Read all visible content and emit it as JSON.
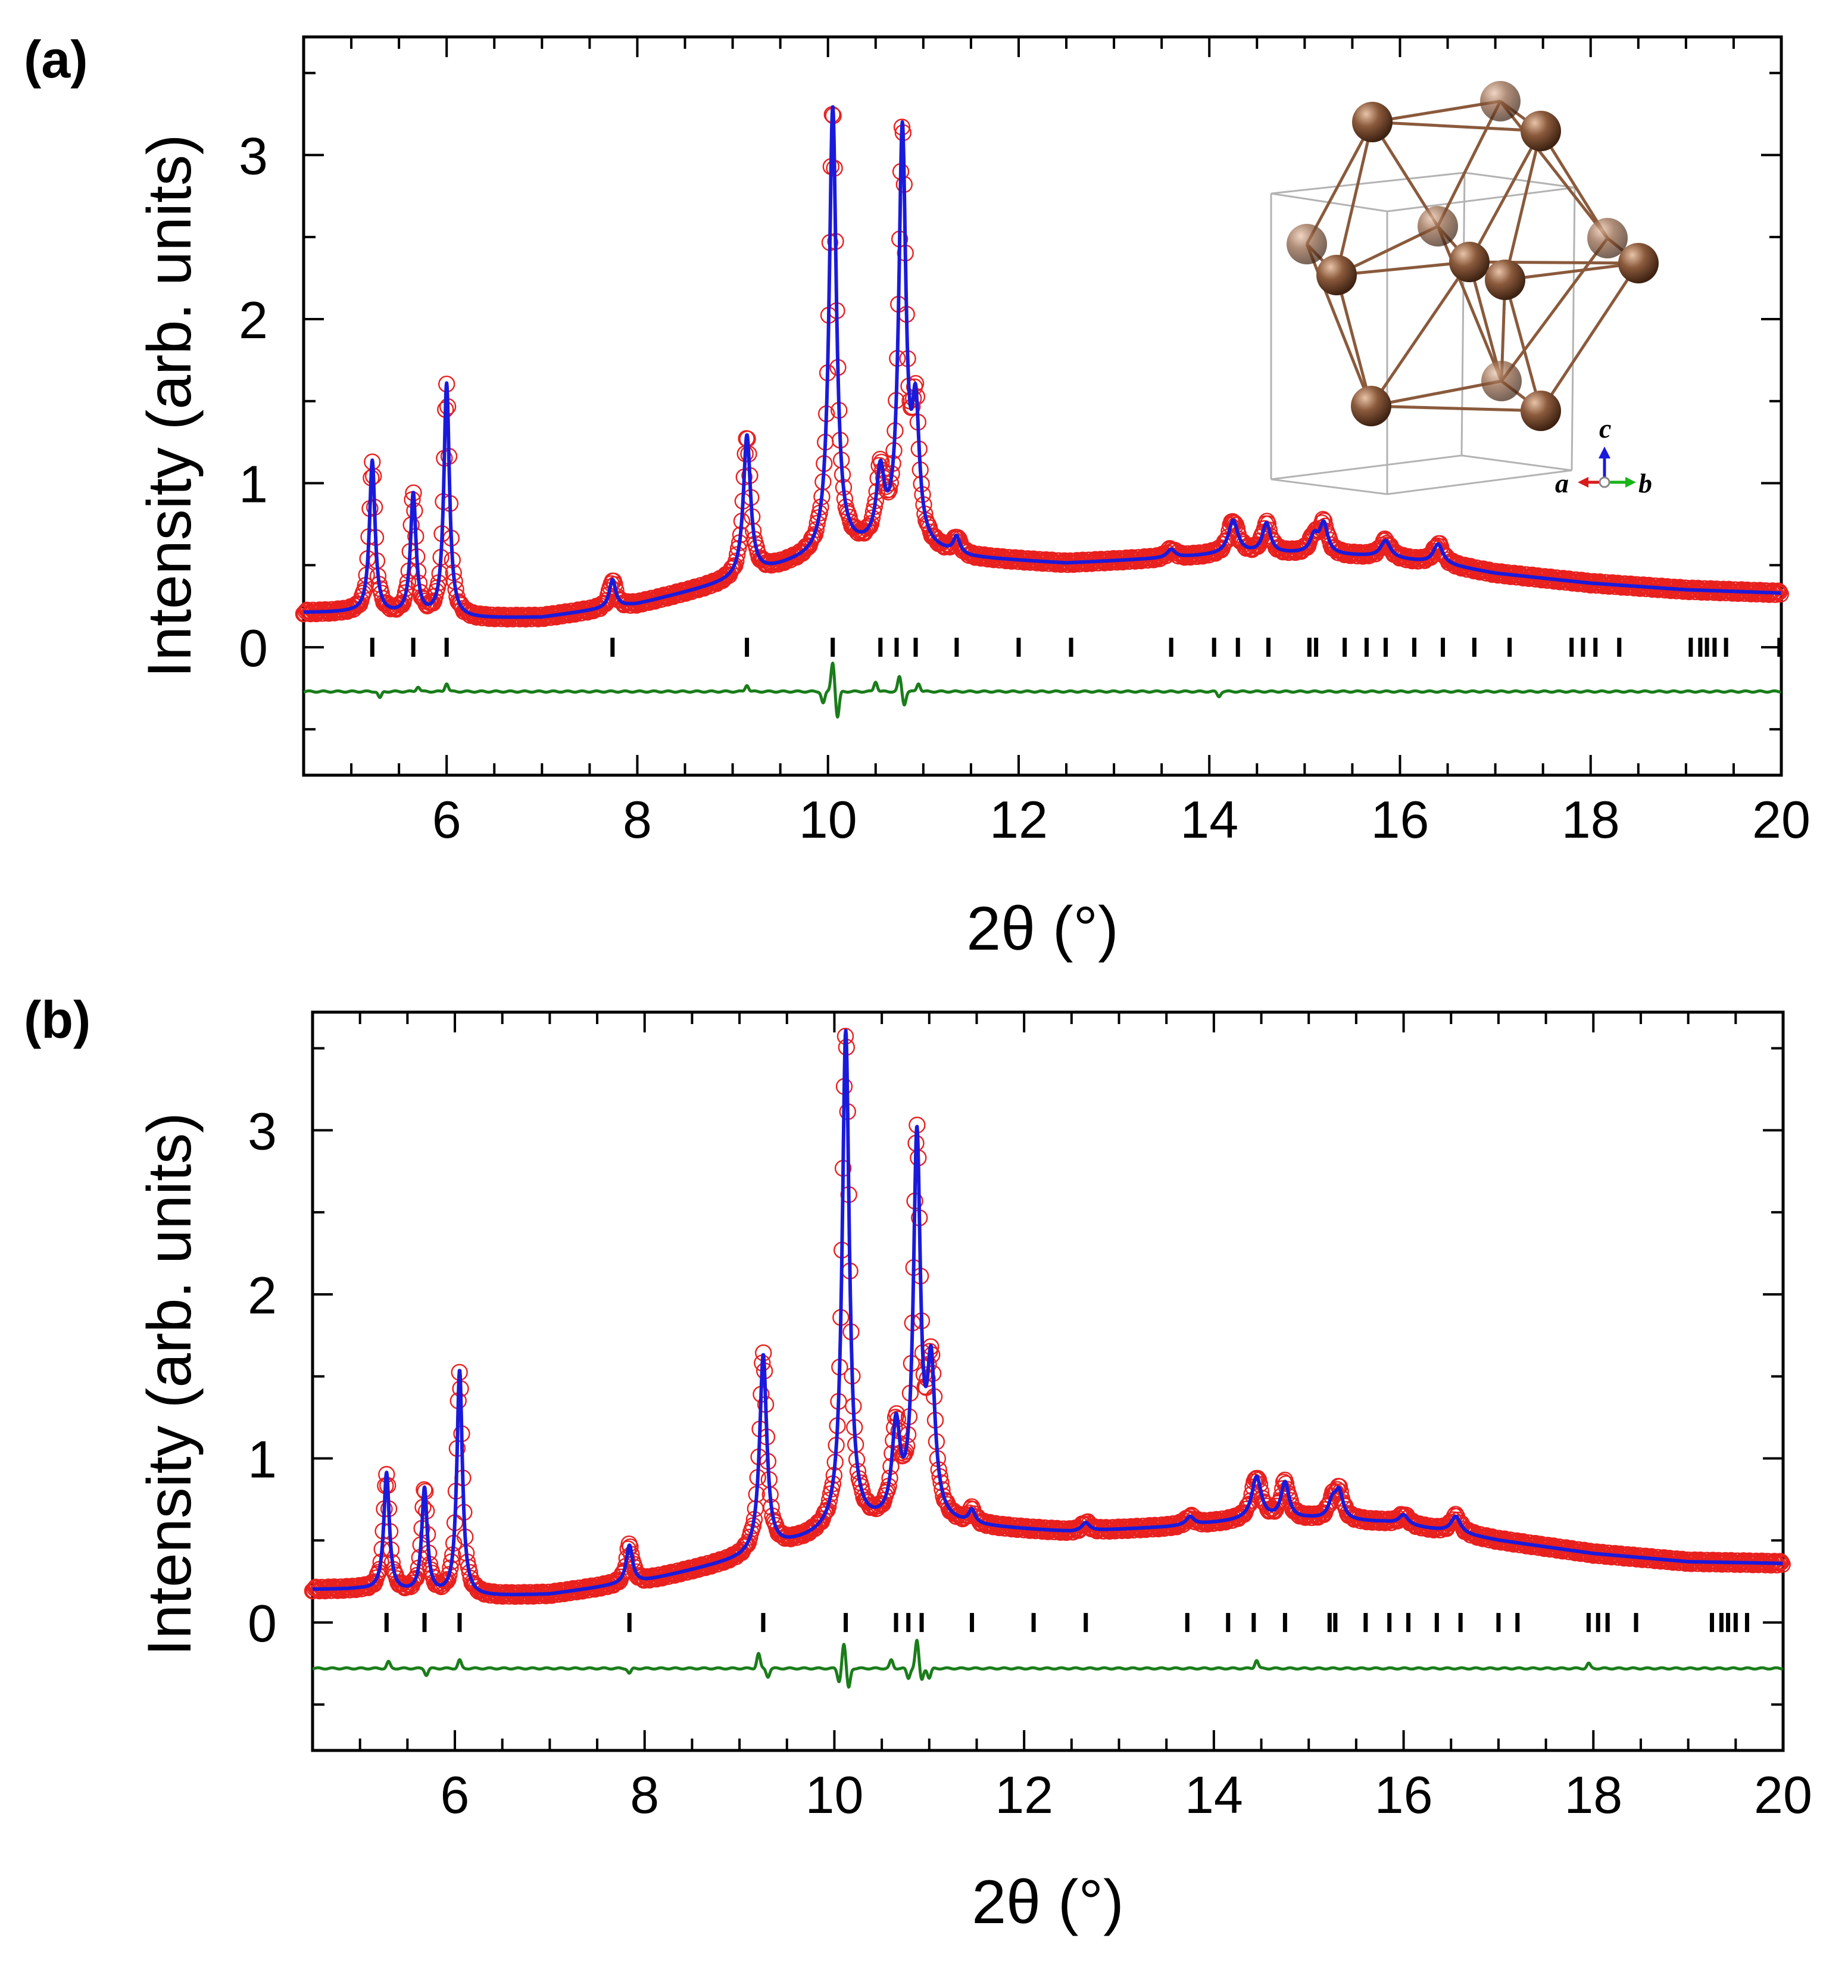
{
  "colors": {
    "observed": "#e8211f",
    "calculated": "#1a1adc",
    "difference": "#1a7d1a",
    "bragg": "#000000",
    "atom": "#8b5a3c",
    "axis_a": "#d81b1b",
    "axis_b": "#18b418",
    "axis_c": "#1a1adc"
  },
  "chart_data": [
    {
      "panel_label": "(a)",
      "type": "line",
      "xlabel": "2θ (°)",
      "ylabel": "Intensity (arb. units)",
      "xlim": [
        4.5,
        20
      ],
      "ylim": [
        -0.78,
        3.72
      ],
      "xticks": [
        "6",
        "8",
        "10",
        "12",
        "14",
        "16",
        "18",
        "20"
      ],
      "yticks": [
        "0",
        "1",
        "2",
        "3"
      ],
      "legend": "none",
      "series": [
        {
          "name": "Observed",
          "style": "open circles",
          "color_key": "observed"
        },
        {
          "name": "Calculated",
          "style": "line",
          "color_key": "calculated"
        },
        {
          "name": "Difference",
          "style": "line",
          "offset": -0.27,
          "color_key": "difference"
        },
        {
          "name": "Bragg positions",
          "style": "ticks",
          "y": 0,
          "color_key": "bragg"
        }
      ],
      "background": [
        [
          4.5,
          0.21
        ],
        [
          5.0,
          0.21
        ],
        [
          6.0,
          0.17
        ],
        [
          7.0,
          0.18
        ],
        [
          8.0,
          0.26
        ],
        [
          9.0,
          0.4
        ],
        [
          9.6,
          0.5
        ],
        [
          10.2,
          0.58
        ],
        [
          10.8,
          0.6
        ],
        [
          11.5,
          0.54
        ],
        [
          12.5,
          0.51
        ],
        [
          13.5,
          0.54
        ],
        [
          14.3,
          0.57
        ],
        [
          15.0,
          0.57
        ],
        [
          15.8,
          0.55
        ],
        [
          16.5,
          0.5
        ],
        [
          17.0,
          0.45
        ],
        [
          18.0,
          0.39
        ],
        [
          19.0,
          0.35
        ],
        [
          20.0,
          0.33
        ]
      ],
      "peaks": [
        [
          5.22,
          0.93,
          0.035
        ],
        [
          5.65,
          0.74,
          0.035
        ],
        [
          6.0,
          1.43,
          0.035
        ],
        [
          7.74,
          0.17,
          0.04
        ],
        [
          9.15,
          0.86,
          0.045
        ],
        [
          10.05,
          2.72,
          0.045
        ],
        [
          10.55,
          0.42,
          0.05
        ],
        [
          10.78,
          2.5,
          0.045
        ],
        [
          10.92,
          0.76,
          0.045
        ],
        [
          11.35,
          0.1,
          0.04
        ],
        [
          13.6,
          0.05,
          0.05
        ],
        [
          14.25,
          0.2,
          0.06
        ],
        [
          14.6,
          0.18,
          0.05
        ],
        [
          15.1,
          0.1,
          0.05
        ],
        [
          15.2,
          0.18,
          0.05
        ],
        [
          15.85,
          0.1,
          0.06
        ],
        [
          16.4,
          0.12,
          0.06
        ]
      ],
      "bragg_positions": [
        5.22,
        5.65,
        6.0,
        7.74,
        9.15,
        10.05,
        10.55,
        10.72,
        10.92,
        11.35,
        12.0,
        12.55,
        13.6,
        14.05,
        14.3,
        14.62,
        15.05,
        15.12,
        15.42,
        15.65,
        15.85,
        16.15,
        16.45,
        16.78,
        17.15,
        17.8,
        17.92,
        18.05,
        18.3,
        19.05,
        19.15,
        19.22,
        19.3,
        19.42,
        19.98
      ],
      "difference_features": [
        [
          5.3,
          -0.04
        ],
        [
          5.7,
          0.03
        ],
        [
          6.0,
          0.05
        ],
        [
          9.15,
          0.04
        ],
        [
          9.95,
          -0.07
        ],
        [
          10.05,
          0.18
        ],
        [
          10.1,
          -0.16
        ],
        [
          10.5,
          0.06
        ],
        [
          10.75,
          0.09
        ],
        [
          10.8,
          -0.08
        ],
        [
          10.95,
          0.05
        ],
        [
          14.1,
          -0.03
        ]
      ],
      "inset": {
        "description": "crystal structure",
        "axis_labels": {
          "a": "a",
          "b": "b",
          "c": "c"
        }
      }
    },
    {
      "panel_label": "(b)",
      "type": "line",
      "xlabel": "2θ (°)",
      "ylabel": "Intensity (arb. units)",
      "xlim": [
        4.5,
        20
      ],
      "ylim": [
        -0.78,
        3.72
      ],
      "xticks": [
        "6",
        "8",
        "10",
        "12",
        "14",
        "16",
        "18",
        "20"
      ],
      "yticks": [
        "0",
        "1",
        "2",
        "3"
      ],
      "legend": "none",
      "series": [
        {
          "name": "Observed",
          "style": "open circles",
          "color_key": "observed"
        },
        {
          "name": "Calculated",
          "style": "line",
          "color_key": "calculated"
        },
        {
          "name": "Difference",
          "style": "line",
          "offset": -0.28,
          "color_key": "difference"
        },
        {
          "name": "Bragg positions",
          "style": "ticks",
          "y": 0,
          "color_key": "bragg"
        }
      ],
      "background": [
        [
          4.5,
          0.2
        ],
        [
          5.0,
          0.2
        ],
        [
          6.0,
          0.15
        ],
        [
          7.0,
          0.17
        ],
        [
          8.0,
          0.25
        ],
        [
          9.0,
          0.38
        ],
        [
          9.6,
          0.48
        ],
        [
          10.2,
          0.57
        ],
        [
          10.8,
          0.6
        ],
        [
          11.5,
          0.58
        ],
        [
          12.5,
          0.55
        ],
        [
          13.5,
          0.58
        ],
        [
          14.3,
          0.62
        ],
        [
          15.0,
          0.63
        ],
        [
          15.8,
          0.61
        ],
        [
          16.5,
          0.55
        ],
        [
          17.0,
          0.5
        ],
        [
          18.0,
          0.42
        ],
        [
          19.0,
          0.37
        ],
        [
          20.0,
          0.36
        ]
      ],
      "peaks": [
        [
          5.28,
          0.72,
          0.035
        ],
        [
          5.68,
          0.64,
          0.035
        ],
        [
          6.05,
          1.38,
          0.035
        ],
        [
          7.84,
          0.23,
          0.04
        ],
        [
          9.25,
          1.2,
          0.045
        ],
        [
          10.12,
          3.03,
          0.045
        ],
        [
          10.65,
          0.55,
          0.05
        ],
        [
          10.87,
          2.3,
          0.045
        ],
        [
          11.02,
          0.88,
          0.05
        ],
        [
          11.45,
          0.08,
          0.04
        ],
        [
          12.65,
          0.05,
          0.05
        ],
        [
          13.75,
          0.05,
          0.05
        ],
        [
          14.45,
          0.26,
          0.06
        ],
        [
          14.75,
          0.22,
          0.05
        ],
        [
          15.25,
          0.1,
          0.05
        ],
        [
          15.32,
          0.16,
          0.05
        ],
        [
          16.0,
          0.06,
          0.06
        ],
        [
          16.55,
          0.1,
          0.06
        ]
      ],
      "bragg_positions": [
        5.28,
        5.68,
        6.05,
        7.84,
        9.25,
        10.12,
        10.65,
        10.78,
        10.92,
        11.45,
        12.1,
        12.65,
        13.72,
        14.15,
        14.42,
        14.75,
        15.22,
        15.28,
        15.6,
        15.85,
        16.05,
        16.35,
        16.6,
        17.0,
        17.2,
        17.95,
        18.05,
        18.15,
        18.45,
        19.25,
        19.35,
        19.42,
        19.5,
        19.62
      ],
      "difference_features": [
        [
          5.3,
          0.04
        ],
        [
          5.7,
          -0.04
        ],
        [
          6.05,
          0.05
        ],
        [
          7.84,
          -0.03
        ],
        [
          9.2,
          0.09
        ],
        [
          9.3,
          -0.05
        ],
        [
          10.05,
          -0.08
        ],
        [
          10.1,
          0.15
        ],
        [
          10.15,
          -0.12
        ],
        [
          10.6,
          0.05
        ],
        [
          10.78,
          -0.06
        ],
        [
          10.87,
          0.17
        ],
        [
          10.92,
          -0.07
        ],
        [
          11.0,
          -0.06
        ],
        [
          14.45,
          0.05
        ],
        [
          17.95,
          0.03
        ]
      ]
    }
  ]
}
